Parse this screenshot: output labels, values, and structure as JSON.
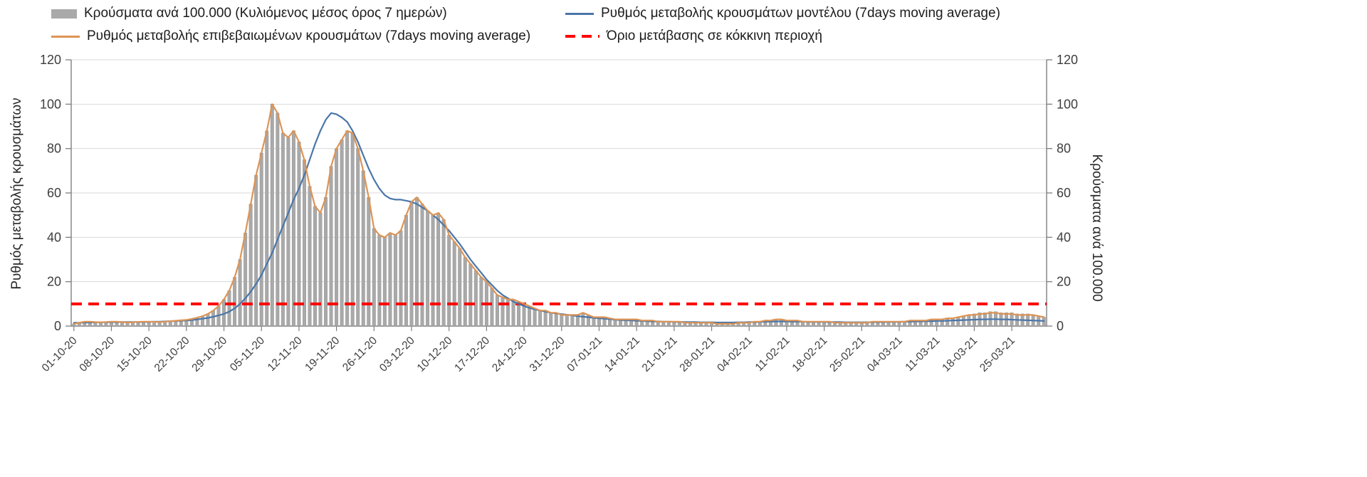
{
  "chart_data": {
    "type": "combo-bar-line",
    "title": "",
    "grid": true,
    "legend_position": "top",
    "y_axis_left": {
      "label": "Ρυθμός μεταβολής κρουσμάτων",
      "min": 0,
      "max": 120,
      "step": 20
    },
    "y_axis_right": {
      "label": "Κρούσματα ανά 100.000",
      "min": 0,
      "max": 120,
      "step": 20
    },
    "x_tick_interval_days": 7,
    "x_tick_labels": [
      "01-10-20",
      "08-10-20",
      "15-10-20",
      "22-10-20",
      "29-10-20",
      "05-11-20",
      "12-11-20",
      "19-11-20",
      "26-11-20",
      "03-12-20",
      "10-12-20",
      "17-12-20",
      "24-12-20",
      "31-12-20",
      "07-01-21",
      "14-01-21",
      "21-01-21",
      "28-01-21",
      "04-02-21",
      "11-02-21",
      "18-02-21",
      "25-02-21",
      "04-03-21",
      "11-03-21",
      "18-03-21",
      "25-03-21"
    ],
    "threshold": {
      "label": "Όριο μετάβασης σε κόκκινη περιοχή",
      "value": 10,
      "color": "#ff0000"
    },
    "series": [
      {
        "name": "Κρούσματα ανά 100.000 (Κυλιόμενος μέσος όρος 7 ημερών)",
        "type": "bar",
        "color": "#a9a9a9",
        "values": [
          1,
          1.5,
          2,
          2,
          1.8,
          1.7,
          1.8,
          2,
          2,
          1.8,
          1.6,
          1.7,
          1.9,
          2,
          2,
          1.9,
          1.8,
          2,
          2.2,
          2.4,
          2.6,
          2.8,
          3.2,
          3.8,
          4.5,
          5.5,
          7,
          9,
          12,
          16,
          22,
          30,
          42,
          55,
          68,
          78,
          88,
          100,
          96,
          87,
          85,
          88,
          83,
          75,
          63,
          54,
          51,
          58,
          72,
          80,
          84,
          88,
          87,
          80,
          70,
          58,
          44,
          41,
          40,
          42,
          41,
          43,
          50,
          56,
          58,
          55,
          52,
          50,
          51,
          48,
          41,
          38,
          35,
          31,
          28,
          25,
          22,
          20,
          17,
          14,
          13,
          12,
          12,
          11,
          10,
          9,
          8,
          7,
          7,
          6,
          6,
          5,
          5,
          5,
          5,
          6,
          5,
          4,
          4,
          4,
          3.5,
          3,
          3,
          3,
          3,
          3,
          2.5,
          2.5,
          2.5,
          2,
          2,
          2,
          2,
          2,
          1.5,
          1.5,
          1.5,
          1.5,
          1.5,
          1.5,
          1,
          1,
          1,
          1,
          1.5,
          1.5,
          1.5,
          2,
          2,
          2.5,
          2.5,
          3,
          3,
          2.5,
          2.5,
          2.5,
          2,
          2,
          2,
          2,
          2,
          2,
          1.5,
          1.5,
          1.5,
          1.5,
          1.5,
          1.5,
          1.5,
          2,
          2,
          2,
          2,
          2,
          2,
          2,
          2.5,
          2.5,
          2.5,
          2.5,
          3,
          3,
          3,
          3.5,
          3.5,
          4,
          4.5,
          5,
          5.5,
          6,
          6,
          6.5,
          6.5,
          6,
          6,
          6,
          5.5,
          5.5,
          5.5,
          5,
          4.5,
          4
        ]
      },
      {
        "name": "Ρυθμός μεταβολής κρουσμάτων μοντέλου (7days moving average)",
        "type": "line",
        "color": "#4a76a8",
        "values": [
          1.5,
          1.5,
          1.6,
          1.6,
          1.7,
          1.7,
          1.7,
          1.8,
          1.8,
          1.8,
          1.8,
          1.8,
          1.8,
          1.9,
          1.9,
          2,
          2,
          2.1,
          2.2,
          2.3,
          2.4,
          2.5,
          2.7,
          3,
          3.3,
          3.7,
          4.2,
          4.8,
          5.5,
          6.5,
          8,
          10,
          12.5,
          15.5,
          19,
          23,
          28,
          33,
          39,
          45,
          51,
          57,
          62,
          68,
          75,
          82,
          88,
          93,
          96,
          95.5,
          94,
          92,
          88,
          83,
          77,
          71,
          66,
          62,
          59,
          57.5,
          57,
          57,
          56.5,
          56,
          55,
          53.5,
          52,
          50,
          48,
          45.5,
          43,
          40,
          37,
          33.5,
          30,
          27,
          24,
          21,
          18.5,
          16,
          14,
          12.5,
          11,
          10,
          9,
          8.2,
          7.5,
          7,
          6.5,
          6,
          5.7,
          5.4,
          5.1,
          4.8,
          4.5,
          4.2,
          4,
          3.7,
          3.5,
          3.3,
          3.1,
          2.9,
          2.7,
          2.6,
          2.5,
          2.4,
          2.3,
          2.2,
          2.1,
          2.1,
          2,
          2,
          1.9,
          1.9,
          1.8,
          1.8,
          1.8,
          1.7,
          1.7,
          1.7,
          1.6,
          1.6,
          1.6,
          1.6,
          1.7,
          1.7,
          1.8,
          1.8,
          1.9,
          2,
          2,
          2.1,
          2.1,
          2.1,
          2,
          2,
          2,
          1.9,
          1.9,
          1.9,
          1.9,
          1.8,
          1.8,
          1.8,
          1.7,
          1.7,
          1.7,
          1.7,
          1.7,
          1.8,
          1.8,
          1.8,
          1.9,
          1.9,
          1.9,
          2,
          2,
          2.1,
          2.1,
          2.2,
          2.2,
          2.3,
          2.3,
          2.4,
          2.5,
          2.6,
          2.7,
          2.8,
          2.9,
          3,
          3,
          3.1,
          3.1,
          3,
          3,
          2.9,
          2.8,
          2.7,
          2.6,
          2.5,
          2.4,
          2.3
        ]
      },
      {
        "name": "Ρυθμός μεταβολής επιβεβαιωμένων κρουσμάτων (7days moving average)",
        "type": "line",
        "color": "#dd9455",
        "values": [
          1,
          1.5,
          2,
          2,
          1.8,
          1.7,
          1.8,
          2,
          2,
          1.8,
          1.6,
          1.7,
          1.9,
          2,
          2,
          1.9,
          1.8,
          2,
          2.2,
          2.4,
          2.6,
          2.8,
          3.2,
          3.8,
          4.5,
          5.5,
          7,
          9,
          12,
          16,
          22,
          30,
          42,
          55,
          68,
          78,
          88,
          100,
          96,
          87,
          85,
          88,
          83,
          75,
          63,
          54,
          51,
          58,
          72,
          80,
          84,
          88,
          87,
          80,
          70,
          58,
          44,
          41,
          40,
          42,
          41,
          43,
          50,
          56,
          58,
          55,
          52,
          50,
          51,
          48,
          41,
          38,
          35,
          31,
          28,
          25,
          22,
          20,
          17,
          14,
          13,
          12,
          12,
          11,
          10,
          9,
          8,
          7,
          7,
          6,
          6,
          5,
          5,
          5,
          5,
          6,
          5,
          4,
          4,
          4,
          3.5,
          3,
          3,
          3,
          3,
          3,
          2.5,
          2.5,
          2.5,
          2,
          2,
          2,
          2,
          2,
          1.5,
          1.5,
          1.5,
          1.5,
          1.5,
          1.5,
          1,
          1,
          1,
          1,
          1.5,
          1.5,
          1.5,
          2,
          2,
          2.5,
          2.5,
          3,
          3,
          2.5,
          2.5,
          2.5,
          2,
          2,
          2,
          2,
          2,
          2,
          1.5,
          1.5,
          1.5,
          1.5,
          1.5,
          1.5,
          1.5,
          2,
          2,
          2,
          2,
          2,
          2,
          2,
          2.5,
          2.5,
          2.5,
          2.5,
          3,
          3,
          3,
          3.5,
          3.5,
          4,
          4.5,
          5,
          5,
          5.5,
          5.5,
          6,
          6,
          5.5,
          5.5,
          5.5,
          5,
          5,
          5,
          5,
          4.5,
          4
        ]
      }
    ]
  }
}
